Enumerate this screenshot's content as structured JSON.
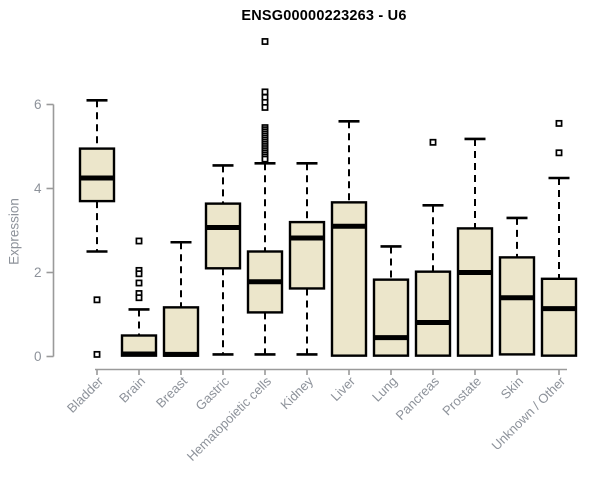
{
  "chart_data": {
    "type": "boxplot",
    "title": "ENSG00000223263 - U6",
    "xlabel": "",
    "ylabel": "Expression",
    "ylim": [
      0,
      6
    ],
    "yticks": [
      0,
      2,
      4,
      6
    ],
    "grid": false,
    "categories": [
      "Bladder",
      "Brain",
      "Breast",
      "Gastric",
      "Hematopoietic cells",
      "Kidney",
      "Liver",
      "Lung",
      "Pancreas",
      "Prostate",
      "Skin",
      "Unknown / Other"
    ],
    "series": [
      {
        "name": "Bladder",
        "whisker_low": 2.5,
        "q1": 3.7,
        "median": 4.25,
        "q3": 4.95,
        "whisker_high": 6.1,
        "outliers": [
          1.35,
          0.05
        ]
      },
      {
        "name": "Brain",
        "whisker_low": 0.02,
        "q1": 0.02,
        "median": 0.06,
        "q3": 0.5,
        "whisker_high": 1.12,
        "outliers": [
          2.75,
          2.05,
          1.97,
          1.75,
          1.5,
          1.4
        ]
      },
      {
        "name": "Breast",
        "whisker_low": 0.02,
        "q1": 0.02,
        "median": 0.05,
        "q3": 1.17,
        "whisker_high": 2.72,
        "outliers": []
      },
      {
        "name": "Gastric",
        "whisker_low": 0.05,
        "q1": 2.1,
        "median": 3.07,
        "q3": 3.64,
        "whisker_high": 4.55,
        "outliers": []
      },
      {
        "name": "Hematopoietic cells",
        "whisker_low": 0.05,
        "q1": 1.05,
        "median": 1.78,
        "q3": 2.5,
        "whisker_high": 4.6,
        "outliers": [
          7.5,
          6.3,
          6.17,
          6.05,
          5.93,
          5.45,
          5.4,
          5.35,
          5.3,
          5.25,
          5.2,
          5.15,
          5.1,
          5.05,
          5.0,
          4.95,
          4.9,
          4.85,
          4.8,
          4.75,
          4.7
        ]
      },
      {
        "name": "Kidney",
        "whisker_low": 0.05,
        "q1": 1.62,
        "median": 2.82,
        "q3": 3.2,
        "whisker_high": 4.6,
        "outliers": []
      },
      {
        "name": "Liver",
        "whisker_low": 0.02,
        "q1": 0.02,
        "median": 3.1,
        "q3": 3.67,
        "whisker_high": 5.6,
        "outliers": []
      },
      {
        "name": "Lung",
        "whisker_low": 0.02,
        "q1": 0.02,
        "median": 0.45,
        "q3": 1.83,
        "whisker_high": 2.62,
        "outliers": []
      },
      {
        "name": "Pancreas",
        "whisker_low": 0.02,
        "q1": 0.02,
        "median": 0.81,
        "q3": 2.02,
        "whisker_high": 3.6,
        "outliers": [
          5.1
        ]
      },
      {
        "name": "Prostate",
        "whisker_low": 0.02,
        "q1": 0.02,
        "median": 2.0,
        "q3": 3.05,
        "whisker_high": 5.18,
        "outliers": []
      },
      {
        "name": "Skin",
        "whisker_low": 0.05,
        "q1": 0.05,
        "median": 1.4,
        "q3": 2.36,
        "whisker_high": 3.3,
        "outliers": []
      },
      {
        "name": "Unknown / Other",
        "whisker_low": 0.02,
        "q1": 0.02,
        "median": 1.14,
        "q3": 1.85,
        "whisker_high": 4.25,
        "outliers": [
          5.55,
          4.85
        ]
      }
    ],
    "colors": {
      "box_fill": "#ece6cb",
      "box_border": "#000000",
      "median": "#000000",
      "whisker": "#000000",
      "outlier_fill": "#ffffff",
      "axis_line": "#9a9a9a",
      "axis_text": "#8d929a",
      "title_text": "#000000"
    }
  }
}
